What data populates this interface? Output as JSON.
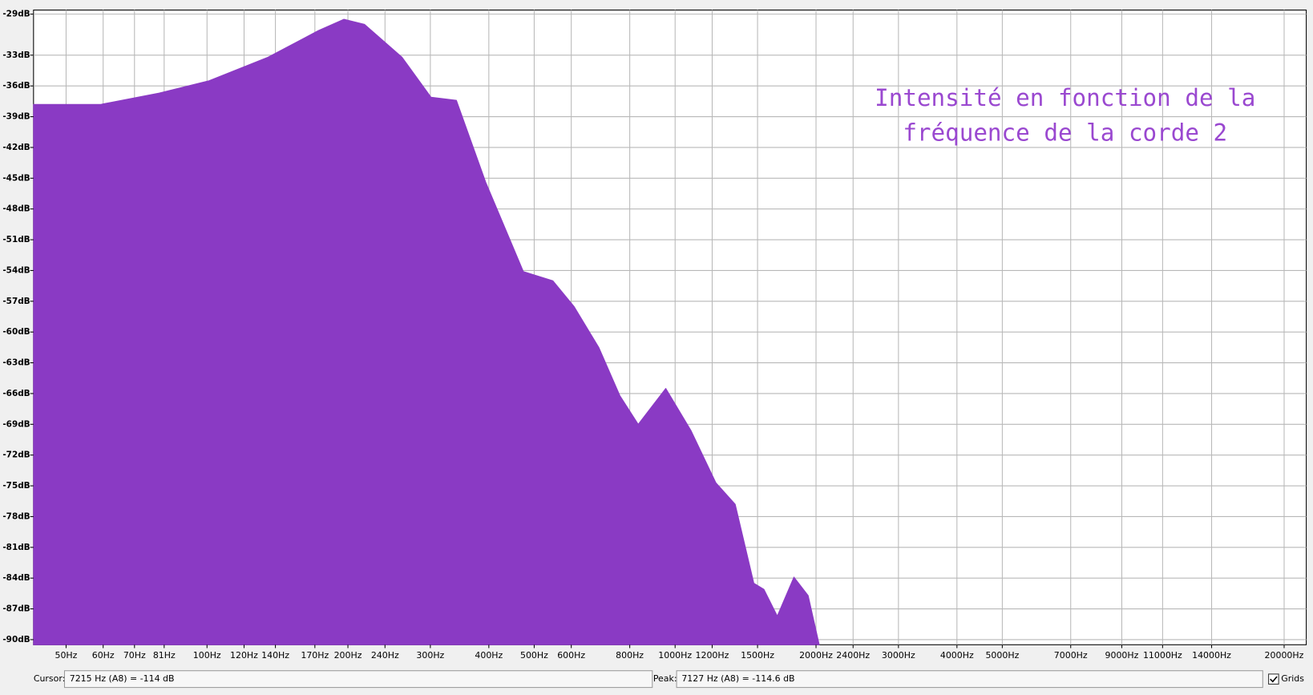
{
  "chart_data": {
    "type": "area",
    "log_x": true,
    "color": "#8a3ac4",
    "grid": true,
    "annotation": [
      "Intensité en fonction de la",
      "fréquence de la corde 2"
    ],
    "x": [
      42.6,
      59.3,
      79,
      101,
      135,
      173,
      196,
      217,
      261,
      301,
      341,
      394,
      474,
      548,
      608,
      687,
      762,
      834,
      955,
      1081,
      1222,
      1344,
      1473,
      1548,
      1653,
      1794,
      1924,
      2032
    ],
    "values": [
      -37.8,
      -37.8,
      -36.7,
      -35.5,
      -33.2,
      -30.6,
      -29.5,
      -30.0,
      -33.2,
      -37.1,
      -37.4,
      -45.4,
      -54.1,
      -55.0,
      -57.5,
      -61.5,
      -66.2,
      -69.0,
      -65.5,
      -69.6,
      -74.7,
      -76.8,
      -84.5,
      -85.1,
      -87.7,
      -83.9,
      -85.7,
      -90.5
    ],
    "xlim": [
      42.6,
      22300
    ],
    "ylim": [
      -90.5,
      -28.6
    ],
    "xticks": [
      {
        "value": 50,
        "label": "50Hz"
      },
      {
        "value": 60,
        "label": "60Hz"
      },
      {
        "value": 70,
        "label": "70Hz"
      },
      {
        "value": 81,
        "label": "81Hz"
      },
      {
        "value": 100,
        "label": "100Hz"
      },
      {
        "value": 120,
        "label": "120Hz"
      },
      {
        "value": 140,
        "label": "140Hz"
      },
      {
        "value": 170,
        "label": "170Hz"
      },
      {
        "value": 200,
        "label": "200Hz"
      },
      {
        "value": 240,
        "label": "240Hz"
      },
      {
        "value": 300,
        "label": "300Hz"
      },
      {
        "value": 400,
        "label": "400Hz"
      },
      {
        "value": 500,
        "label": "500Hz"
      },
      {
        "value": 600,
        "label": "600Hz"
      },
      {
        "value": 800,
        "label": "800Hz"
      },
      {
        "value": 1000,
        "label": "1000Hz"
      },
      {
        "value": 1200,
        "label": "1200Hz"
      },
      {
        "value": 1500,
        "label": "1500Hz"
      },
      {
        "value": 2000,
        "label": "2000Hz"
      },
      {
        "value": 2400,
        "label": "2400Hz"
      },
      {
        "value": 3000,
        "label": "3000Hz"
      },
      {
        "value": 4000,
        "label": "4000Hz"
      },
      {
        "value": 5000,
        "label": "5000Hz"
      },
      {
        "value": 7000,
        "label": "7000Hz"
      },
      {
        "value": 9000,
        "label": "9000Hz"
      },
      {
        "value": 11000,
        "label": "11000Hz"
      },
      {
        "value": 14000,
        "label": "14000Hz"
      },
      {
        "value": 20000,
        "label": "20000Hz"
      }
    ],
    "yticks": [
      {
        "value": -29,
        "label": "-29dB"
      },
      {
        "value": -33,
        "label": "-33dB"
      },
      {
        "value": -36,
        "label": "-36dB"
      },
      {
        "value": -39,
        "label": "-39dB"
      },
      {
        "value": -42,
        "label": "-42dB"
      },
      {
        "value": -45,
        "label": "-45dB"
      },
      {
        "value": -48,
        "label": "-48dB"
      },
      {
        "value": -51,
        "label": "-51dB"
      },
      {
        "value": -54,
        "label": "-54dB"
      },
      {
        "value": -57,
        "label": "-57dB"
      },
      {
        "value": -60,
        "label": "-60dB"
      },
      {
        "value": -63,
        "label": "-63dB"
      },
      {
        "value": -66,
        "label": "-66dB"
      },
      {
        "value": -69,
        "label": "-69dB"
      },
      {
        "value": -72,
        "label": "-72dB"
      },
      {
        "value": -75,
        "label": "-75dB"
      },
      {
        "value": -78,
        "label": "-78dB"
      },
      {
        "value": -81,
        "label": "-81dB"
      },
      {
        "value": -84,
        "label": "-84dB"
      },
      {
        "value": -87,
        "label": "-87dB"
      },
      {
        "value": -90,
        "label": "-90dB"
      }
    ]
  },
  "status_bar": {
    "cursor_label": "Cursor:",
    "cursor_value": "7215 Hz (A8) = -114 dB",
    "peak_label": "Peak:",
    "peak_value": "7127 Hz (A8) = -114.6 dB",
    "grids_label": "Grids"
  }
}
